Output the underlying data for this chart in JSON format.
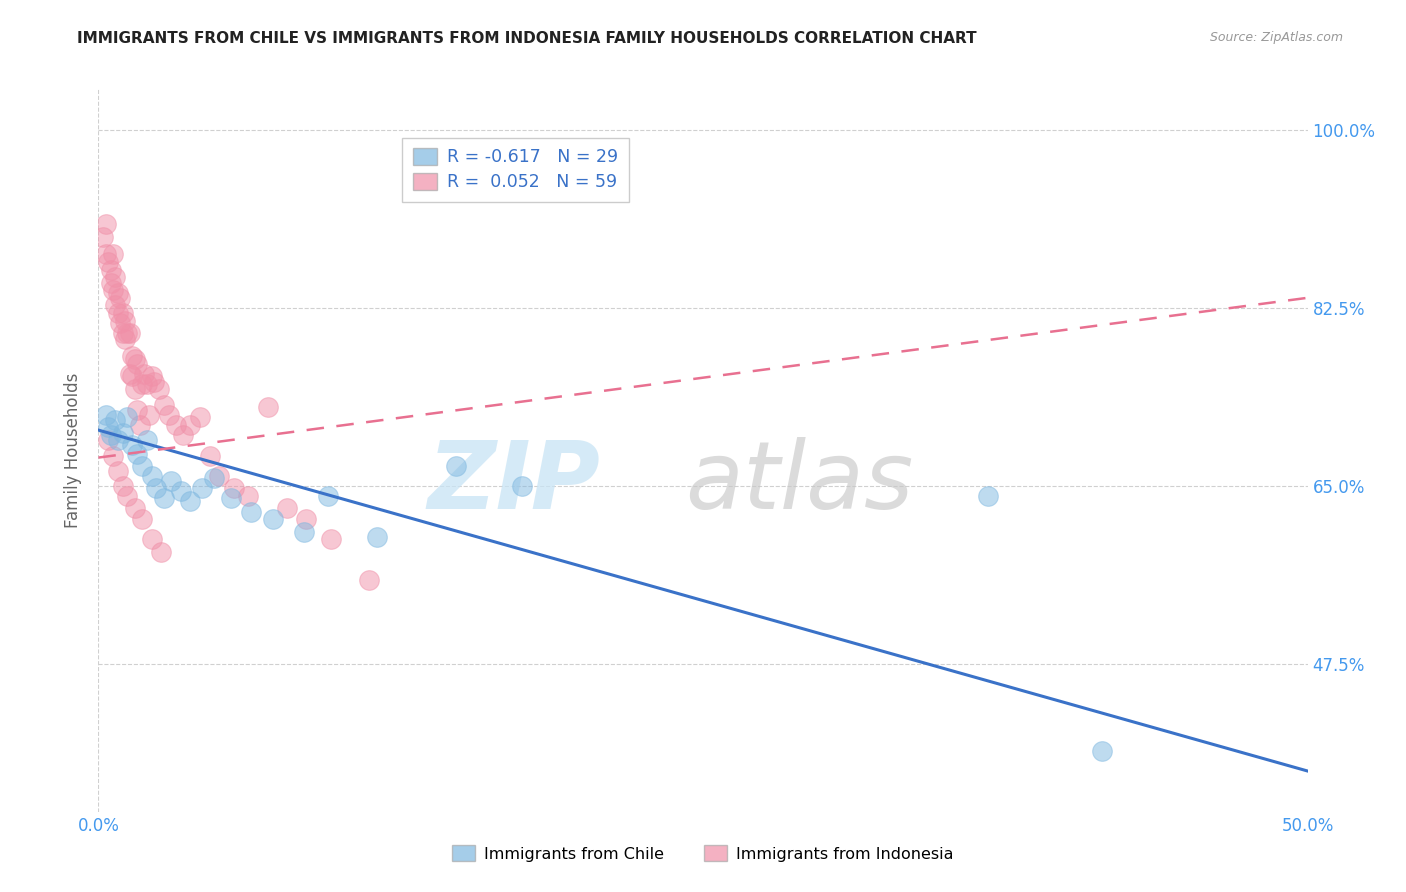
{
  "title": "IMMIGRANTS FROM CHILE VS IMMIGRANTS FROM INDONESIA FAMILY HOUSEHOLDS CORRELATION CHART",
  "source": "Source: ZipAtlas.com",
  "ylabel": "Family Households",
  "x_min": 0.0,
  "x_max": 0.5,
  "y_min": 0.33,
  "y_max": 1.04,
  "y_ticks": [
    0.475,
    0.65,
    0.825,
    1.0
  ],
  "y_tick_labels": [
    "47.5%",
    "65.0%",
    "82.5%",
    "100.0%"
  ],
  "grid_color": "#d0d0d0",
  "background_color": "#ffffff",
  "chile_color": "#7fb8e0",
  "indonesia_color": "#f090a8",
  "chile_line_color": "#3a72c8",
  "indonesia_line_color": "#e87090",
  "chile_R": -0.617,
  "chile_N": 29,
  "indonesia_R": 0.052,
  "indonesia_N": 59,
  "chile_x": [
    0.003,
    0.004,
    0.005,
    0.007,
    0.008,
    0.01,
    0.012,
    0.014,
    0.016,
    0.018,
    0.02,
    0.022,
    0.024,
    0.027,
    0.03,
    0.034,
    0.038,
    0.043,
    0.048,
    0.055,
    0.063,
    0.072,
    0.085,
    0.095,
    0.115,
    0.148,
    0.175,
    0.368,
    0.415
  ],
  "chile_y": [
    0.72,
    0.708,
    0.7,
    0.715,
    0.695,
    0.702,
    0.718,
    0.69,
    0.682,
    0.67,
    0.695,
    0.66,
    0.648,
    0.638,
    0.655,
    0.645,
    0.635,
    0.648,
    0.658,
    0.638,
    0.625,
    0.618,
    0.605,
    0.64,
    0.6,
    0.67,
    0.65,
    0.64,
    0.39
  ],
  "indonesia_x": [
    0.002,
    0.003,
    0.003,
    0.004,
    0.005,
    0.005,
    0.006,
    0.006,
    0.007,
    0.007,
    0.008,
    0.008,
    0.009,
    0.009,
    0.01,
    0.01,
    0.011,
    0.011,
    0.012,
    0.013,
    0.013,
    0.014,
    0.014,
    0.015,
    0.015,
    0.016,
    0.016,
    0.017,
    0.018,
    0.019,
    0.02,
    0.021,
    0.022,
    0.023,
    0.025,
    0.027,
    0.029,
    0.032,
    0.035,
    0.038,
    0.042,
    0.046,
    0.05,
    0.056,
    0.062,
    0.07,
    0.078,
    0.086,
    0.096,
    0.112,
    0.004,
    0.006,
    0.008,
    0.01,
    0.012,
    0.015,
    0.018,
    0.022,
    0.026
  ],
  "indonesia_y": [
    0.895,
    0.908,
    0.878,
    0.87,
    0.862,
    0.85,
    0.878,
    0.843,
    0.855,
    0.828,
    0.84,
    0.82,
    0.835,
    0.81,
    0.82,
    0.8,
    0.812,
    0.795,
    0.8,
    0.8,
    0.76,
    0.758,
    0.778,
    0.745,
    0.775,
    0.725,
    0.77,
    0.71,
    0.75,
    0.76,
    0.75,
    0.72,
    0.758,
    0.752,
    0.745,
    0.73,
    0.72,
    0.71,
    0.7,
    0.71,
    0.718,
    0.68,
    0.66,
    0.648,
    0.64,
    0.728,
    0.628,
    0.618,
    0.598,
    0.558,
    0.695,
    0.68,
    0.665,
    0.65,
    0.64,
    0.628,
    0.618,
    0.598,
    0.585
  ],
  "chile_line_x": [
    0.0,
    0.5
  ],
  "chile_line_y": [
    0.705,
    0.37
  ],
  "indonesia_line_x": [
    0.0,
    0.5
  ],
  "indonesia_line_y": [
    0.678,
    0.835
  ],
  "legend_R_chile": "R = -0.617",
  "legend_N_chile": "N = 29",
  "legend_R_indo": "R =  0.052",
  "legend_N_indo": "N = 59",
  "legend_chile_label": "Immigrants from Chile",
  "legend_indo_label": "Immigrants from Indonesia",
  "watermark_zip": "ZIP",
  "watermark_atlas": "atlas",
  "title_fontsize": 11,
  "tick_fontsize": 12,
  "label_fontsize": 12
}
